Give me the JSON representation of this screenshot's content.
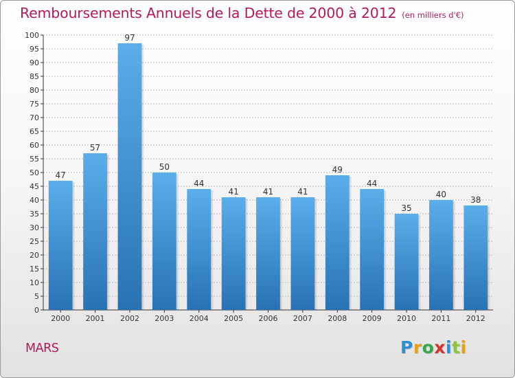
{
  "title": "Remboursements Annuels de la Dette de 2000 à 2012",
  "unit_note": "(en milliers d'€)",
  "commune": "MARS",
  "logo": {
    "letters": [
      "P",
      "r",
      "o",
      "x",
      "i",
      "t",
      "i"
    ],
    "colors": [
      "#2a8fd6",
      "#e8a21a",
      "#3aa54a",
      "#d9342b",
      "#2a8fd6",
      "#8cc63f",
      "#e8a21a"
    ]
  },
  "colors": {
    "title": "#b5195b",
    "bar_light": "#5aaeea",
    "bar_dark": "#2872b4",
    "axis": "#333333",
    "grid": "#bdbdbd"
  },
  "chart_data": {
    "type": "bar",
    "categories": [
      "2000",
      "2001",
      "2002",
      "2003",
      "2004",
      "2005",
      "2006",
      "2007",
      "2008",
      "2009",
      "2010",
      "2011",
      "2012"
    ],
    "values": [
      47,
      57,
      97,
      50,
      44,
      41,
      41,
      41,
      49,
      44,
      35,
      40,
      38
    ],
    "ylim": [
      0,
      100
    ],
    "ytick_step": 5,
    "xlabel": "",
    "ylabel": "",
    "grid": true,
    "data_labels": true
  }
}
